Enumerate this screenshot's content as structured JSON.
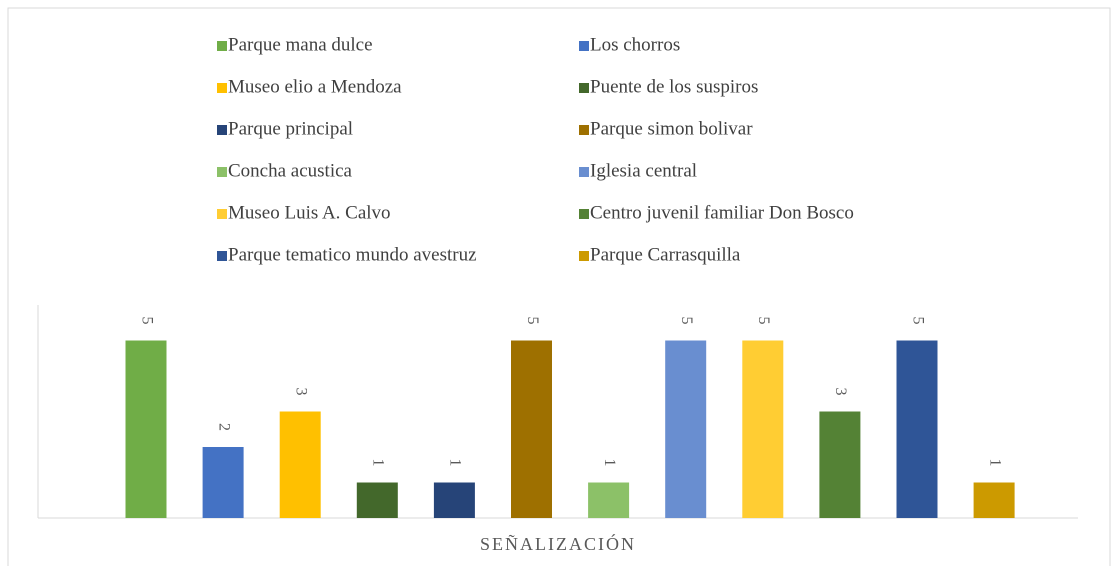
{
  "chart_data": {
    "type": "bar",
    "categories": [
      "SEÑALIZACIÓN"
    ],
    "ylim": [
      0,
      6
    ],
    "series": [
      {
        "name": "Parque mana dulce",
        "color": "#70ad47",
        "values": [
          5
        ]
      },
      {
        "name": "Los chorros",
        "color": "#4472c4",
        "values": [
          2
        ]
      },
      {
        "name": "Museo elio a Mendoza",
        "color": "#ffc000",
        "values": [
          3
        ]
      },
      {
        "name": "Puente de los suspiros",
        "color": "#43682b",
        "values": [
          1
        ]
      },
      {
        "name": "Parque principal",
        "color": "#264478",
        "values": [
          1
        ]
      },
      {
        "name": "Parque simon bolivar",
        "color": "#9e7000",
        "values": [
          5
        ]
      },
      {
        "name": "Concha acustica",
        "color": "#8cc168",
        "values": [
          1
        ]
      },
      {
        "name": "Iglesia central",
        "color": "#698ed0",
        "values": [
          5
        ]
      },
      {
        "name": "Museo Luis A. Calvo",
        "color": "#ffcd33",
        "values": [
          5
        ]
      },
      {
        "name": "Centro juvenil familiar Don Bosco",
        "color": "#548235",
        "values": [
          3
        ]
      },
      {
        "name": "Parque tematico mundo avestruz",
        "color": "#2f5597",
        "values": [
          5
        ]
      },
      {
        "name": "Parque Carrasquilla",
        "color": "#cc9a00",
        "values": [
          1
        ]
      }
    ]
  }
}
